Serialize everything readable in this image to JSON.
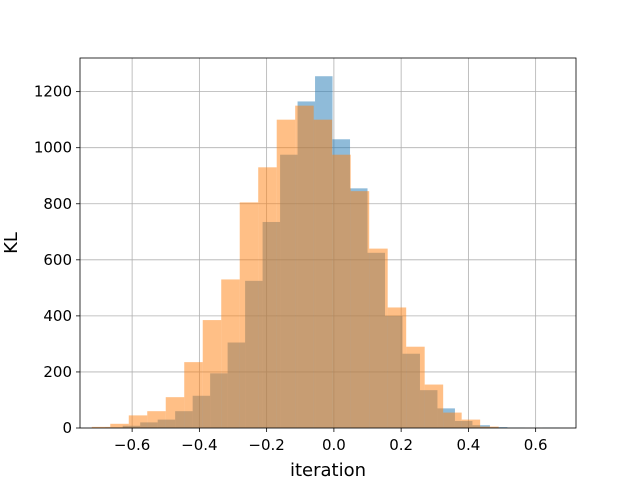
{
  "chart_data": {
    "type": "bar",
    "title": "",
    "xlabel": "iteration",
    "ylabel": "KL",
    "xlim": [
      -0.755,
      0.72
    ],
    "ylim": [
      0,
      1320
    ],
    "grid": true,
    "xticks": [
      -0.6,
      -0.4,
      -0.2,
      0.0,
      0.2,
      0.4,
      0.6
    ],
    "xtick_labels": [
      "−0.6",
      "−0.4",
      "−0.2",
      "0.0",
      "0.2",
      "0.4",
      "0.6"
    ],
    "yticks": [
      0,
      200,
      400,
      600,
      800,
      1000,
      1200
    ],
    "ytick_labels": [
      "0",
      "200",
      "400",
      "600",
      "800",
      "1000",
      "1200"
    ],
    "series": [
      {
        "color": "#1f77b4",
        "opacity": 0.5,
        "bin_edges": [
          -0.68,
          -0.628,
          -0.576,
          -0.524,
          -0.472,
          -0.42,
          -0.368,
          -0.316,
          -0.264,
          -0.212,
          -0.16,
          -0.108,
          -0.056,
          -0.004,
          0.048,
          0.1,
          0.152,
          0.204,
          0.256,
          0.308,
          0.36,
          0.412,
          0.464,
          0.516,
          0.568,
          0.62,
          0.672
        ],
        "values": [
          2,
          8,
          20,
          30,
          60,
          115,
          195,
          305,
          525,
          735,
          975,
          1165,
          1255,
          1030,
          855,
          625,
          400,
          265,
          135,
          70,
          25,
          10,
          3,
          1,
          0,
          1
        ]
      },
      {
        "color": "#ff7f0e",
        "opacity": 0.5,
        "bin_edges": [
          -0.72,
          -0.665,
          -0.61,
          -0.555,
          -0.5,
          -0.445,
          -0.39,
          -0.335,
          -0.28,
          -0.225,
          -0.17,
          -0.115,
          -0.06,
          -0.005,
          0.05,
          0.105,
          0.16,
          0.215,
          0.27,
          0.325,
          0.38,
          0.435,
          0.49
        ],
        "values": [
          4,
          15,
          45,
          60,
          110,
          235,
          385,
          530,
          805,
          930,
          1100,
          1150,
          1100,
          975,
          845,
          640,
          430,
          290,
          155,
          55,
          30,
          5
        ]
      }
    ]
  }
}
